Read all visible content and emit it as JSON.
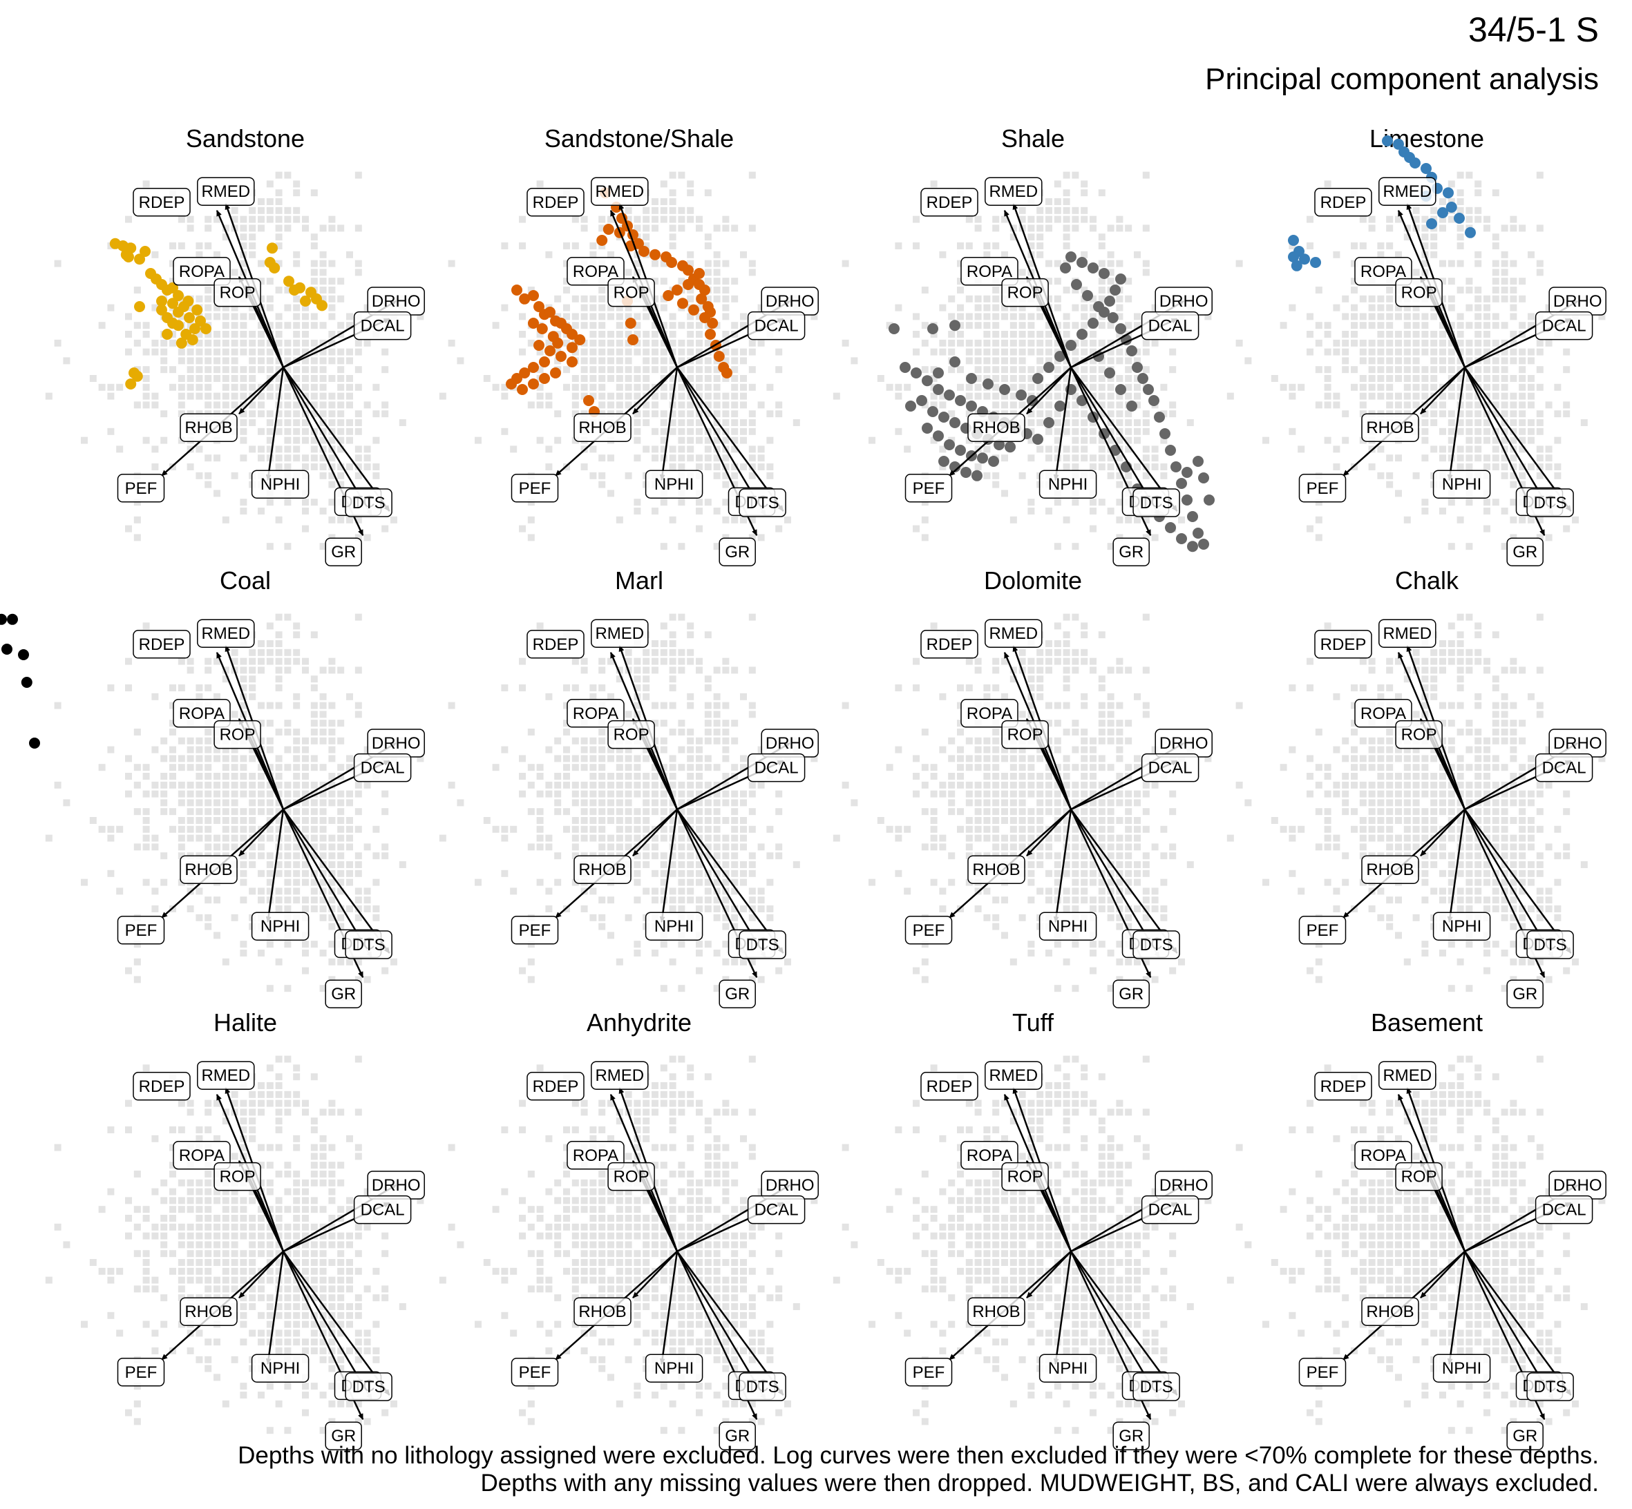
{
  "title": "34/5-1 S",
  "subtitle": "Principal component analysis",
  "caption_line1": "Depths with no lithology assigned were excluded. Log curves were then excluded if they were <70% complete for these depths.",
  "caption_line2": "Depths with any missing values were then dropped. MUDWEIGHT, BS, and CALI were always excluded.",
  "colors": {
    "background_points": "#e3e3e3",
    "arrow": "#000000",
    "label_border": "#000000",
    "label_fill": "#ffffff",
    "Sandstone": "#e6ab02",
    "Sandstone/Shale": "#d95f02",
    "Shale": "#666666",
    "Limestone": "#377eb8",
    "Coal": "#000000"
  },
  "chart_data": {
    "type": "scatter",
    "kind": "PCA biplot faceted by lithology",
    "facets": [
      "Sandstone",
      "Sandstone/Shale",
      "Shale",
      "Limestone",
      "Coal",
      "Marl",
      "Dolomite",
      "Chalk",
      "Halite",
      "Anhydrite",
      "Tuff",
      "Basement"
    ],
    "loadings": [
      {
        "name": "RMED",
        "pc1": -0.52,
        "pc2": 1.48
      },
      {
        "name": "RDEP",
        "pc1": -0.6,
        "pc2": 1.42
      },
      {
        "name": "ROPA",
        "pc1": -0.4,
        "pc2": 0.82
      },
      {
        "name": "ROP",
        "pc1": -0.34,
        "pc2": 0.74
      },
      {
        "name": "DRHO",
        "pc1": 1.02,
        "pc2": 0.6
      },
      {
        "name": "DCAL",
        "pc1": 0.96,
        "pc2": 0.44
      },
      {
        "name": "RHOB",
        "pc1": -0.4,
        "pc2": -0.42
      },
      {
        "name": "PEF",
        "pc1": -1.1,
        "pc2": -0.98
      },
      {
        "name": "NPHI",
        "pc1": -0.14,
        "pc2": -1.02
      },
      {
        "name": "DTC",
        "pc1": 0.8,
        "pc2": -1.34
      },
      {
        "name": "DTS",
        "pc1": 0.96,
        "pc2": -1.3
      },
      {
        "name": "GR",
        "pc1": 0.72,
        "pc2": -1.52
      }
    ],
    "series": [
      {
        "name": "Sandstone",
        "points": [
          [
            -1.52,
            1.12
          ],
          [
            -1.45,
            1.1
          ],
          [
            -1.38,
            1.08
          ],
          [
            -1.4,
            1.0
          ],
          [
            -1.42,
            1.02
          ],
          [
            -1.3,
            0.98
          ],
          [
            -1.25,
            1.05
          ],
          [
            -1.2,
            0.85
          ],
          [
            -1.15,
            0.8
          ],
          [
            -1.1,
            0.75
          ],
          [
            -1.05,
            0.7
          ],
          [
            -1.0,
            0.72
          ],
          [
            -1.1,
            0.6
          ],
          [
            -1.0,
            0.58
          ],
          [
            -0.95,
            0.5
          ],
          [
            -1.05,
            0.45
          ],
          [
            -0.9,
            0.55
          ],
          [
            -0.85,
            0.45
          ],
          [
            -0.95,
            0.38
          ],
          [
            -0.8,
            0.35
          ],
          [
            -0.88,
            0.3
          ],
          [
            -1.05,
            0.3
          ],
          [
            -1.1,
            0.52
          ],
          [
            -0.95,
            0.65
          ],
          [
            -0.75,
            0.42
          ],
          [
            -0.7,
            0.35
          ],
          [
            -0.82,
            0.25
          ],
          [
            -0.92,
            0.22
          ],
          [
            -1.0,
            0.4
          ],
          [
            -0.86,
            0.6
          ],
          [
            -0.78,
            0.52
          ],
          [
            -1.3,
            0.55
          ],
          [
            -1.35,
            -0.05
          ],
          [
            -1.38,
            -0.15
          ],
          [
            -1.32,
            -0.08
          ],
          [
            -0.1,
            1.08
          ],
          [
            -0.12,
            0.95
          ],
          [
            -0.08,
            0.9
          ],
          [
            0.05,
            0.78
          ],
          [
            0.15,
            0.72
          ],
          [
            0.25,
            0.68
          ],
          [
            0.3,
            0.62
          ],
          [
            0.1,
            0.7
          ],
          [
            0.35,
            0.56
          ],
          [
            0.2,
            0.6
          ]
        ]
      },
      {
        "name": "Sandstone/Shale",
        "points": [
          [
            -0.65,
            1.58
          ],
          [
            -0.55,
            1.45
          ],
          [
            -0.5,
            1.35
          ],
          [
            -0.62,
            1.25
          ],
          [
            -0.68,
            1.15
          ],
          [
            -0.52,
            1.22
          ],
          [
            -0.45,
            1.28
          ],
          [
            -0.4,
            1.2
          ],
          [
            -0.42,
            1.1
          ],
          [
            -0.35,
            1.12
          ],
          [
            -0.3,
            1.05
          ],
          [
            -0.2,
            1.02
          ],
          [
            -0.1,
            1.0
          ],
          [
            -0.05,
            0.95
          ],
          [
            0.05,
            0.92
          ],
          [
            0.1,
            0.88
          ],
          [
            0.15,
            0.8
          ],
          [
            0.2,
            0.75
          ],
          [
            0.25,
            0.7
          ],
          [
            0.22,
            0.62
          ],
          [
            0.28,
            0.55
          ],
          [
            0.3,
            0.5
          ],
          [
            0.25,
            0.45
          ],
          [
            0.32,
            0.4
          ],
          [
            0.3,
            0.3
          ],
          [
            0.35,
            0.2
          ],
          [
            0.38,
            0.1
          ],
          [
            0.42,
            0.0
          ],
          [
            0.45,
            -0.05
          ],
          [
            0.2,
            0.85
          ],
          [
            0.1,
            0.75
          ],
          [
            0.0,
            0.7
          ],
          [
            -0.08,
            0.65
          ],
          [
            0.05,
            0.58
          ],
          [
            0.15,
            0.52
          ],
          [
            -0.45,
            0.6
          ],
          [
            -0.42,
            0.4
          ],
          [
            -0.4,
            0.25
          ],
          [
            -1.45,
            0.7
          ],
          [
            -1.38,
            0.62
          ],
          [
            -1.3,
            0.65
          ],
          [
            -1.25,
            0.55
          ],
          [
            -1.2,
            0.48
          ],
          [
            -1.15,
            0.5
          ],
          [
            -1.1,
            0.42
          ],
          [
            -1.05,
            0.4
          ],
          [
            -1.0,
            0.35
          ],
          [
            -0.95,
            0.3
          ],
          [
            -1.12,
            0.28
          ],
          [
            -1.22,
            0.35
          ],
          [
            -1.3,
            0.4
          ],
          [
            -1.25,
            0.2
          ],
          [
            -1.15,
            0.15
          ],
          [
            -1.05,
            0.1
          ],
          [
            -0.95,
            0.05
          ],
          [
            -1.2,
            0.05
          ],
          [
            -1.3,
            0.0
          ],
          [
            -1.38,
            -0.05
          ],
          [
            -1.45,
            -0.1
          ],
          [
            -1.5,
            -0.15
          ],
          [
            -1.4,
            -0.2
          ],
          [
            -1.3,
            -0.15
          ],
          [
            -1.2,
            -0.1
          ],
          [
            -1.1,
            -0.05
          ],
          [
            -0.95,
            0.18
          ],
          [
            -0.88,
            0.25
          ],
          [
            -1.08,
            0.22
          ],
          [
            -0.8,
            -0.3
          ],
          [
            -0.75,
            -0.4
          ]
        ]
      },
      {
        "name": "Shale",
        "points": [
          [
            -1.5,
            0.0
          ],
          [
            -1.4,
            -0.05
          ],
          [
            -1.3,
            -0.12
          ],
          [
            -1.2,
            -0.2
          ],
          [
            -1.1,
            -0.25
          ],
          [
            -1.0,
            -0.3
          ],
          [
            -0.9,
            -0.35
          ],
          [
            -0.8,
            -0.4
          ],
          [
            -0.7,
            -0.45
          ],
          [
            -0.6,
            -0.5
          ],
          [
            -0.5,
            -0.55
          ],
          [
            -0.4,
            -0.6
          ],
          [
            -1.25,
            -0.4
          ],
          [
            -1.15,
            -0.45
          ],
          [
            -1.05,
            -0.5
          ],
          [
            -0.95,
            -0.55
          ],
          [
            -0.85,
            -0.6
          ],
          [
            -0.75,
            -0.65
          ],
          [
            -0.65,
            -0.7
          ],
          [
            -0.55,
            -0.72
          ],
          [
            -1.3,
            -0.55
          ],
          [
            -1.2,
            -0.62
          ],
          [
            -1.1,
            -0.7
          ],
          [
            -1.0,
            -0.75
          ],
          [
            -0.9,
            -0.8
          ],
          [
            -0.8,
            -0.82
          ],
          [
            -0.7,
            -0.85
          ],
          [
            -1.05,
            -0.9
          ],
          [
            -0.95,
            -0.95
          ],
          [
            -0.85,
            -0.98
          ],
          [
            -1.15,
            -0.85
          ],
          [
            -1.35,
            -0.3
          ],
          [
            -1.45,
            -0.35
          ],
          [
            -1.2,
            -0.05
          ],
          [
            -1.05,
            0.05
          ],
          [
            -0.9,
            -0.1
          ],
          [
            -0.75,
            -0.15
          ],
          [
            -0.6,
            -0.2
          ],
          [
            -0.45,
            -0.25
          ],
          [
            -0.35,
            -0.3
          ],
          [
            -0.3,
            -0.1
          ],
          [
            -0.2,
            0.0
          ],
          [
            -0.1,
            0.1
          ],
          [
            0.0,
            0.2
          ],
          [
            0.1,
            0.3
          ],
          [
            0.2,
            0.4
          ],
          [
            0.3,
            0.5
          ],
          [
            0.35,
            0.6
          ],
          [
            0.4,
            0.7
          ],
          [
            0.45,
            0.8
          ],
          [
            0.3,
            0.85
          ],
          [
            0.2,
            0.9
          ],
          [
            0.1,
            0.95
          ],
          [
            0.0,
            1.0
          ],
          [
            -0.05,
            0.9
          ],
          [
            0.05,
            0.75
          ],
          [
            0.15,
            0.65
          ],
          [
            0.25,
            0.55
          ],
          [
            0.38,
            0.45
          ],
          [
            0.45,
            0.35
          ],
          [
            0.5,
            0.25
          ],
          [
            0.55,
            0.15
          ],
          [
            0.6,
            0.0
          ],
          [
            0.65,
            -0.1
          ],
          [
            0.7,
            -0.2
          ],
          [
            0.75,
            -0.3
          ],
          [
            0.8,
            -0.45
          ],
          [
            0.85,
            -0.6
          ],
          [
            0.9,
            -0.75
          ],
          [
            0.95,
            -0.9
          ],
          [
            1.0,
            -1.05
          ],
          [
            1.05,
            -1.2
          ],
          [
            1.1,
            -1.35
          ],
          [
            1.15,
            -1.5
          ],
          [
            1.2,
            -1.6
          ],
          [
            1.1,
            -1.62
          ],
          [
            1.0,
            -1.55
          ],
          [
            0.9,
            -1.45
          ],
          [
            0.8,
            -1.35
          ],
          [
            0.7,
            -1.2
          ],
          [
            0.6,
            -1.1
          ],
          [
            0.5,
            -0.9
          ],
          [
            0.4,
            -0.75
          ],
          [
            0.3,
            -0.6
          ],
          [
            0.2,
            -0.45
          ],
          [
            0.1,
            -0.3
          ],
          [
            0.0,
            -0.2
          ],
          [
            -0.1,
            -0.35
          ],
          [
            -0.2,
            -0.5
          ],
          [
            -0.3,
            -0.65
          ],
          [
            0.25,
            0.1
          ],
          [
            0.35,
            -0.05
          ],
          [
            0.45,
            -0.2
          ],
          [
            0.55,
            -0.35
          ],
          [
            1.05,
            -0.95
          ],
          [
            1.15,
            -0.85
          ],
          [
            1.2,
            -1.0
          ],
          [
            1.25,
            -1.2
          ],
          [
            -1.25,
            0.35
          ],
          [
            -1.05,
            0.38
          ],
          [
            -1.6,
            0.35
          ]
        ]
      },
      {
        "name": "Limestone",
        "points": [
          [
            -0.7,
            2.05
          ],
          [
            -0.6,
            2.02
          ],
          [
            -0.55,
            1.95
          ],
          [
            -0.5,
            1.9
          ],
          [
            -0.45,
            1.85
          ],
          [
            -0.35,
            1.8
          ],
          [
            -0.3,
            1.72
          ],
          [
            -0.25,
            1.62
          ],
          [
            -0.35,
            1.55
          ],
          [
            -0.15,
            1.58
          ],
          [
            -0.12,
            1.45
          ],
          [
            -0.2,
            1.4
          ],
          [
            -0.05,
            1.35
          ],
          [
            -0.3,
            1.3
          ],
          [
            0.05,
            1.22
          ],
          [
            -1.55,
            1.15
          ],
          [
            -1.5,
            1.05
          ],
          [
            -1.55,
            1.0
          ],
          [
            -1.45,
            0.98
          ],
          [
            -1.35,
            0.95
          ],
          [
            -1.52,
            0.92
          ]
        ]
      },
      {
        "name": "Coal",
        "points": [
          [
            -2.55,
            1.72
          ],
          [
            -2.45,
            1.72
          ],
          [
            -2.65,
            1.55
          ],
          [
            -2.5,
            1.45
          ],
          [
            -2.35,
            1.4
          ],
          [
            -2.32,
            1.15
          ],
          [
            -2.25,
            0.6
          ]
        ]
      },
      {
        "name": "Marl",
        "points": []
      },
      {
        "name": "Dolomite",
        "points": []
      },
      {
        "name": "Chalk",
        "points": []
      },
      {
        "name": "Halite",
        "points": []
      },
      {
        "name": "Anhydrite",
        "points": []
      },
      {
        "name": "Tuff",
        "points": []
      },
      {
        "name": "Basement",
        "points": []
      }
    ]
  }
}
